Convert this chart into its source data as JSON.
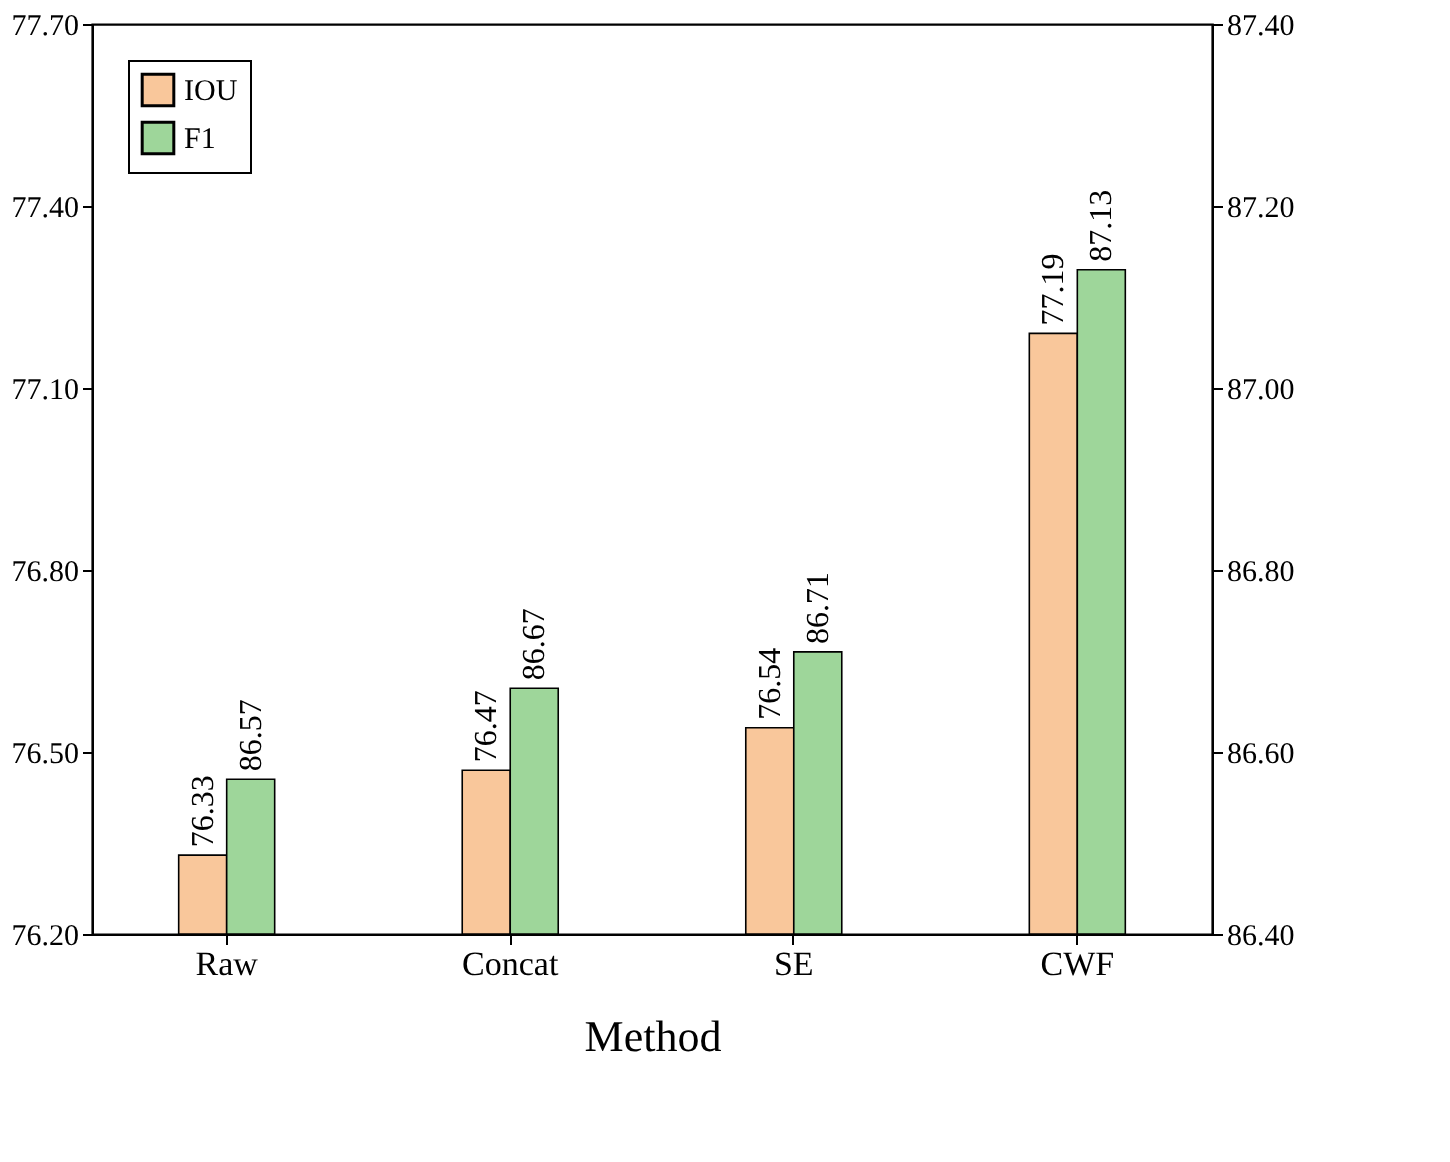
{
  "chart_data": {
    "type": "bar",
    "xlabel": "Method",
    "categories": [
      "Raw",
      "Concat",
      "SE",
      "CWF"
    ],
    "series": [
      {
        "name": "IOU",
        "color": "#f9c79b",
        "values": [
          76.33,
          76.47,
          76.54,
          77.19
        ]
      },
      {
        "name": "F1",
        "color": "#9ed69a",
        "values": [
          86.57,
          86.67,
          86.71,
          87.13
        ],
        "axis": "y2"
      }
    ],
    "ylim": [
      76.2,
      77.7
    ],
    "yticks": [
      {
        "value": 76.2,
        "label": "76.20"
      },
      {
        "value": 76.5,
        "label": "76.50"
      },
      {
        "value": 76.8,
        "label": "76.80"
      },
      {
        "value": 77.1,
        "label": "77.10"
      },
      {
        "value": 77.4,
        "label": "77.40"
      },
      {
        "value": 77.7,
        "label": "77.70"
      }
    ],
    "y2lim": [
      86.4,
      87.4
    ],
    "y2ticks": [
      {
        "value": 86.4,
        "label": "86.40"
      },
      {
        "value": 86.6,
        "label": "86.60"
      },
      {
        "value": 86.8,
        "label": "86.80"
      },
      {
        "value": 87.0,
        "label": "87.00"
      },
      {
        "value": 87.2,
        "label": "87.20"
      },
      {
        "value": 87.4,
        "label": "87.40"
      }
    ],
    "data_labels": true,
    "legend": "top left",
    "grid": false
  }
}
